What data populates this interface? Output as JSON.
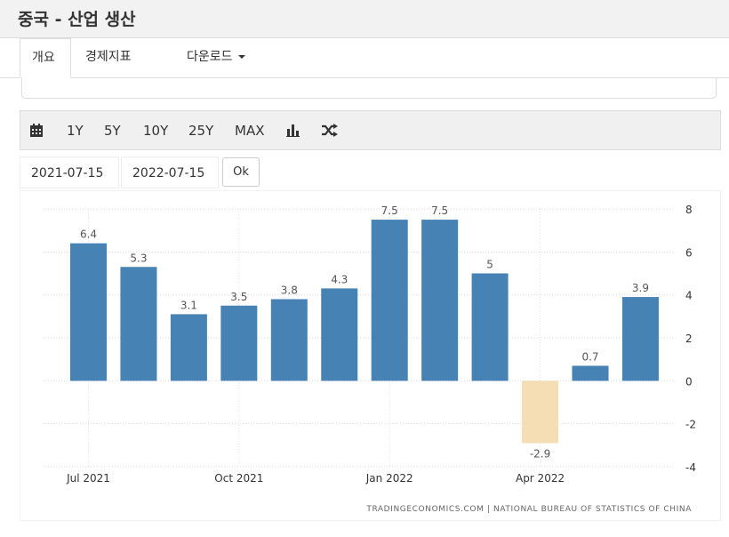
{
  "header": {
    "title": "중국 - 산업 생산"
  },
  "tabs": [
    {
      "label": "개요"
    },
    {
      "label": "경제지표"
    },
    {
      "label": "다운로드"
    }
  ],
  "toolbar": {
    "icons": [
      "calendar-icon",
      "bar-chart-icon",
      "shuffle-icon"
    ],
    "ranges": [
      "1Y",
      "5Y",
      "10Y",
      "25Y",
      "MAX"
    ]
  },
  "date_range": {
    "start": "2021-07-15",
    "end": "2022-07-15",
    "ok_label": "Ok"
  },
  "chart_data": {
    "type": "bar",
    "categories": [
      "Jul 2021",
      "Aug 2021",
      "Sep 2021",
      "Oct 2021",
      "Nov 2021",
      "Dec 2021",
      "Jan 2022",
      "Feb 2022",
      "Mar 2022",
      "Apr 2022",
      "May 2022",
      "Jun 2022"
    ],
    "values": [
      6.4,
      5.3,
      3.1,
      3.5,
      3.8,
      4.3,
      7.5,
      7.5,
      5,
      -2.9,
      0.7,
      3.9
    ],
    "value_labels": [
      "6.4",
      "5.3",
      "3.1",
      "3.5",
      "3.8",
      "4.3",
      "7.5",
      "7.5",
      "5",
      "-2.9",
      "0.7",
      "3.9"
    ],
    "x_tick_labels": [
      "Jul 2021",
      "Oct 2021",
      "Jan 2022",
      "Apr 2022"
    ],
    "x_tick_categories": [
      "Jul 2021",
      "Oct 2021",
      "Jan 2022",
      "Apr 2022"
    ],
    "y_ticks": [
      8,
      6,
      4,
      2,
      0,
      -2,
      -4
    ],
    "ylim": [
      -4,
      8
    ],
    "grid": true,
    "y_axis_side": "right",
    "colors": {
      "positive": "#4682b4",
      "negative": "#f5deb3"
    },
    "source": "TRADINGECONOMICS.COM  |  NATIONAL BUREAU OF STATISTICS OF CHINA"
  }
}
